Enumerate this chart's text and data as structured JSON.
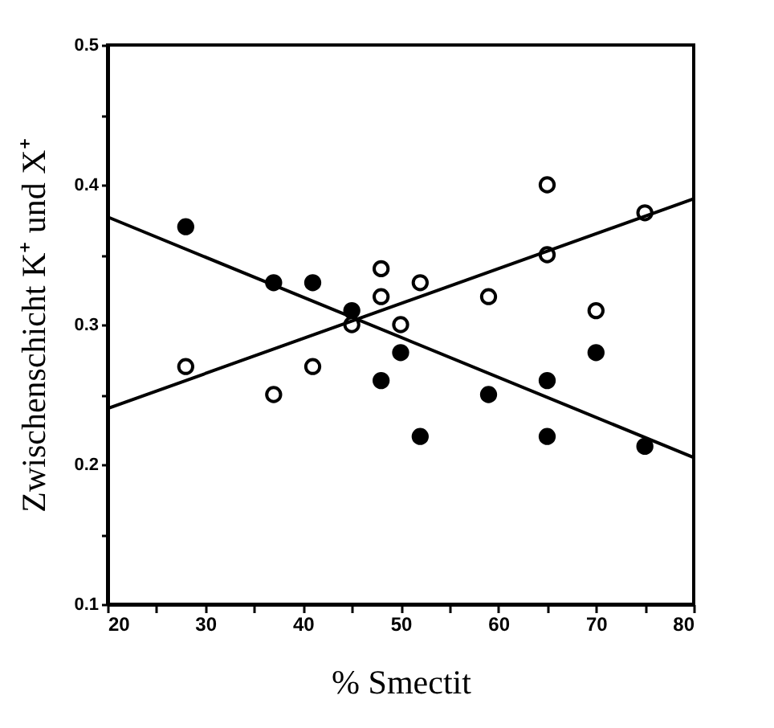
{
  "chart_data": {
    "type": "scatter",
    "xlabel": "% Smectit",
    "ylabel": "Zwischenschicht K⁺ und X⁺",
    "xlim": [
      20,
      80
    ],
    "ylim": [
      0.1,
      0.5
    ],
    "xticks": [
      20,
      {
        "value": 25,
        "label": null
      },
      30,
      {
        "value": 35,
        "label": null
      },
      40,
      {
        "value": 45,
        "label": null
      },
      50,
      {
        "value": 55,
        "label": null
      },
      60,
      {
        "value": 65,
        "label": null
      },
      70,
      {
        "value": 75,
        "label": null
      },
      80
    ],
    "yticks": [
      0.1,
      {
        "value": 0.15,
        "label": null
      },
      0.2,
      {
        "value": 0.25,
        "label": null
      },
      0.3,
      {
        "value": 0.35,
        "label": null
      },
      0.4,
      {
        "value": 0.45,
        "label": null
      },
      0.5
    ],
    "grid": false,
    "marker": "circle",
    "series": [
      {
        "color": "#000000",
        "x": [
          28,
          37,
          41,
          45,
          48,
          50,
          52,
          59,
          65,
          65,
          70,
          75
        ],
        "values": [
          0.37,
          0.33,
          0.33,
          0.31,
          0.26,
          0.28,
          0.22,
          0.25,
          0.26,
          0.22,
          0.28,
          0.213
        ]
      },
      {
        "color": "#000000",
        "x": [
          28,
          37,
          41,
          45,
          48,
          48,
          50,
          52,
          59,
          65,
          65,
          70,
          75
        ],
        "values": [
          0.27,
          0.25,
          0.27,
          0.3,
          0.34,
          0.32,
          0.3,
          0.33,
          0.32,
          0.4,
          0.35,
          0.31,
          0.38
        ]
      },
      {
        "type": "line",
        "color": "#000000",
        "marker": "none",
        "x": [
          20,
          80
        ],
        "values": [
          0.377,
          0.205
        ]
      },
      {
        "type": "line",
        "color": "#000000",
        "marker": "none",
        "x": [
          20,
          80
        ],
        "values": [
          0.24,
          0.39
        ]
      }
    ]
  }
}
